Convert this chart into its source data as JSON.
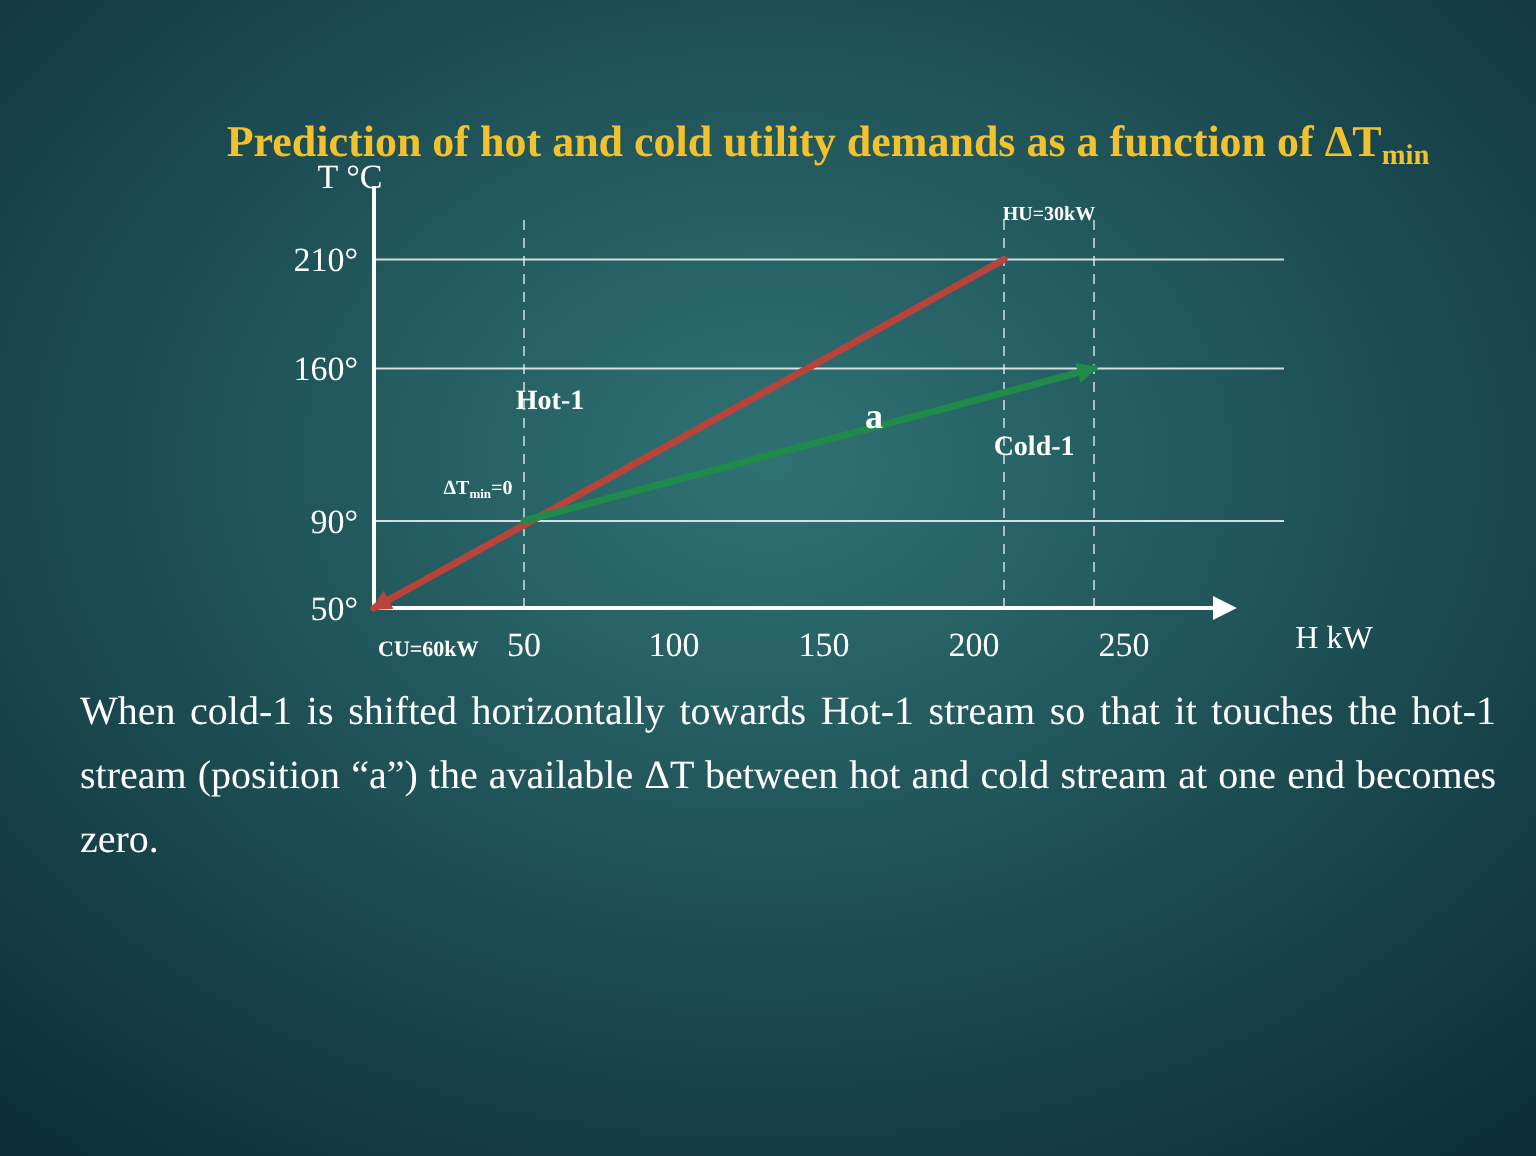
{
  "chart_data": {
    "type": "line",
    "title": "Prediction of hot and cold utility demands as a function of ΔT$_{min}$",
    "xlabel": "H kW",
    "ylabel": "T °C",
    "xlim": [
      0,
      290
    ],
    "ylim": [
      50,
      230
    ],
    "xticks": [
      50,
      100,
      150,
      200,
      250
    ],
    "yticks": [
      {
        "value": 50,
        "label": "50°"
      },
      {
        "value": 90,
        "label": "90°"
      },
      {
        "value": 160,
        "label": "160°"
      },
      {
        "value": 210,
        "label": "210°"
      }
    ],
    "grid": "y",
    "marker": "none",
    "line_style": "solid",
    "series": [
      {
        "name": "Hot-1",
        "color": "#b8433a",
        "x": [
          210,
          0
        ],
        "values": [
          210,
          50
        ]
      },
      {
        "name": "Cold-1",
        "color": "#1f8a4c",
        "x": [
          50,
          240
        ],
        "values": [
          90,
          160
        ]
      }
    ],
    "ref_lines": [
      {
        "axis": "x",
        "value": 50,
        "line_style": "dashed"
      },
      {
        "axis": "x",
        "value": 210,
        "line_style": "dashed"
      },
      {
        "axis": "x",
        "value": 240,
        "line_style": "dashed"
      }
    ],
    "annotations": [
      "HU=30kW",
      "ΔT$_{min}$=0",
      "a",
      "CU=60kW",
      "When cold-1 is shifted horizontally towards Hot-1 stream so that it touches the hot-1 stream  (position “a”) the available ΔT between hot and cold stream at one end becomes zero."
    ]
  }
}
